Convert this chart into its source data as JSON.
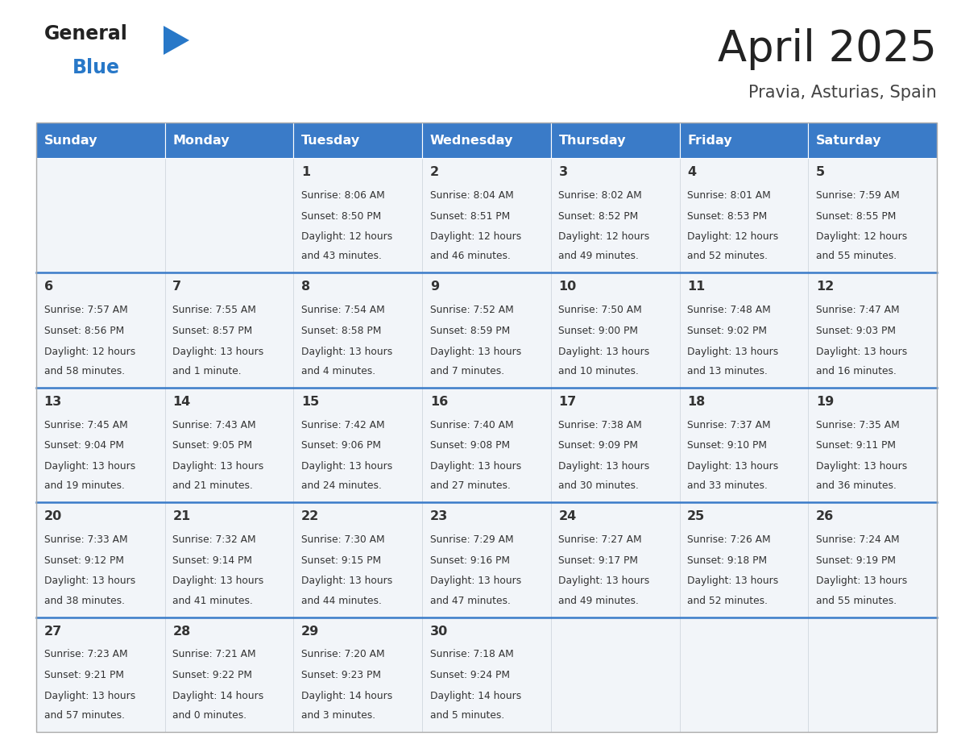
{
  "title": "April 2025",
  "subtitle": "Pravia, Asturias, Spain",
  "days_of_week": [
    "Sunday",
    "Monday",
    "Tuesday",
    "Wednesday",
    "Thursday",
    "Friday",
    "Saturday"
  ],
  "header_bg": "#3a7bc8",
  "header_text": "#ffffff",
  "cell_bg": "#f2f5f9",
  "separator_color": "#3a7bc8",
  "title_color": "#222222",
  "subtitle_color": "#444444",
  "text_color": "#333333",
  "logo_general_color": "#222222",
  "logo_blue_color": "#2878c8",
  "logo_triangle_color": "#2878c8",
  "calendar_data": [
    [
      {
        "day": "",
        "sunrise": "",
        "sunset": "",
        "daylight": ""
      },
      {
        "day": "",
        "sunrise": "",
        "sunset": "",
        "daylight": ""
      },
      {
        "day": "1",
        "sunrise": "Sunrise: 8:06 AM",
        "sunset": "Sunset: 8:50 PM",
        "daylight": "Daylight: 12 hours\nand 43 minutes."
      },
      {
        "day": "2",
        "sunrise": "Sunrise: 8:04 AM",
        "sunset": "Sunset: 8:51 PM",
        "daylight": "Daylight: 12 hours\nand 46 minutes."
      },
      {
        "day": "3",
        "sunrise": "Sunrise: 8:02 AM",
        "sunset": "Sunset: 8:52 PM",
        "daylight": "Daylight: 12 hours\nand 49 minutes."
      },
      {
        "day": "4",
        "sunrise": "Sunrise: 8:01 AM",
        "sunset": "Sunset: 8:53 PM",
        "daylight": "Daylight: 12 hours\nand 52 minutes."
      },
      {
        "day": "5",
        "sunrise": "Sunrise: 7:59 AM",
        "sunset": "Sunset: 8:55 PM",
        "daylight": "Daylight: 12 hours\nand 55 minutes."
      }
    ],
    [
      {
        "day": "6",
        "sunrise": "Sunrise: 7:57 AM",
        "sunset": "Sunset: 8:56 PM",
        "daylight": "Daylight: 12 hours\nand 58 minutes."
      },
      {
        "day": "7",
        "sunrise": "Sunrise: 7:55 AM",
        "sunset": "Sunset: 8:57 PM",
        "daylight": "Daylight: 13 hours\nand 1 minute."
      },
      {
        "day": "8",
        "sunrise": "Sunrise: 7:54 AM",
        "sunset": "Sunset: 8:58 PM",
        "daylight": "Daylight: 13 hours\nand 4 minutes."
      },
      {
        "day": "9",
        "sunrise": "Sunrise: 7:52 AM",
        "sunset": "Sunset: 8:59 PM",
        "daylight": "Daylight: 13 hours\nand 7 minutes."
      },
      {
        "day": "10",
        "sunrise": "Sunrise: 7:50 AM",
        "sunset": "Sunset: 9:00 PM",
        "daylight": "Daylight: 13 hours\nand 10 minutes."
      },
      {
        "day": "11",
        "sunrise": "Sunrise: 7:48 AM",
        "sunset": "Sunset: 9:02 PM",
        "daylight": "Daylight: 13 hours\nand 13 minutes."
      },
      {
        "day": "12",
        "sunrise": "Sunrise: 7:47 AM",
        "sunset": "Sunset: 9:03 PM",
        "daylight": "Daylight: 13 hours\nand 16 minutes."
      }
    ],
    [
      {
        "day": "13",
        "sunrise": "Sunrise: 7:45 AM",
        "sunset": "Sunset: 9:04 PM",
        "daylight": "Daylight: 13 hours\nand 19 minutes."
      },
      {
        "day": "14",
        "sunrise": "Sunrise: 7:43 AM",
        "sunset": "Sunset: 9:05 PM",
        "daylight": "Daylight: 13 hours\nand 21 minutes."
      },
      {
        "day": "15",
        "sunrise": "Sunrise: 7:42 AM",
        "sunset": "Sunset: 9:06 PM",
        "daylight": "Daylight: 13 hours\nand 24 minutes."
      },
      {
        "day": "16",
        "sunrise": "Sunrise: 7:40 AM",
        "sunset": "Sunset: 9:08 PM",
        "daylight": "Daylight: 13 hours\nand 27 minutes."
      },
      {
        "day": "17",
        "sunrise": "Sunrise: 7:38 AM",
        "sunset": "Sunset: 9:09 PM",
        "daylight": "Daylight: 13 hours\nand 30 minutes."
      },
      {
        "day": "18",
        "sunrise": "Sunrise: 7:37 AM",
        "sunset": "Sunset: 9:10 PM",
        "daylight": "Daylight: 13 hours\nand 33 minutes."
      },
      {
        "day": "19",
        "sunrise": "Sunrise: 7:35 AM",
        "sunset": "Sunset: 9:11 PM",
        "daylight": "Daylight: 13 hours\nand 36 minutes."
      }
    ],
    [
      {
        "day": "20",
        "sunrise": "Sunrise: 7:33 AM",
        "sunset": "Sunset: 9:12 PM",
        "daylight": "Daylight: 13 hours\nand 38 minutes."
      },
      {
        "day": "21",
        "sunrise": "Sunrise: 7:32 AM",
        "sunset": "Sunset: 9:14 PM",
        "daylight": "Daylight: 13 hours\nand 41 minutes."
      },
      {
        "day": "22",
        "sunrise": "Sunrise: 7:30 AM",
        "sunset": "Sunset: 9:15 PM",
        "daylight": "Daylight: 13 hours\nand 44 minutes."
      },
      {
        "day": "23",
        "sunrise": "Sunrise: 7:29 AM",
        "sunset": "Sunset: 9:16 PM",
        "daylight": "Daylight: 13 hours\nand 47 minutes."
      },
      {
        "day": "24",
        "sunrise": "Sunrise: 7:27 AM",
        "sunset": "Sunset: 9:17 PM",
        "daylight": "Daylight: 13 hours\nand 49 minutes."
      },
      {
        "day": "25",
        "sunrise": "Sunrise: 7:26 AM",
        "sunset": "Sunset: 9:18 PM",
        "daylight": "Daylight: 13 hours\nand 52 minutes."
      },
      {
        "day": "26",
        "sunrise": "Sunrise: 7:24 AM",
        "sunset": "Sunset: 9:19 PM",
        "daylight": "Daylight: 13 hours\nand 55 minutes."
      }
    ],
    [
      {
        "day": "27",
        "sunrise": "Sunrise: 7:23 AM",
        "sunset": "Sunset: 9:21 PM",
        "daylight": "Daylight: 13 hours\nand 57 minutes."
      },
      {
        "day": "28",
        "sunrise": "Sunrise: 7:21 AM",
        "sunset": "Sunset: 9:22 PM",
        "daylight": "Daylight: 14 hours\nand 0 minutes."
      },
      {
        "day": "29",
        "sunrise": "Sunrise: 7:20 AM",
        "sunset": "Sunset: 9:23 PM",
        "daylight": "Daylight: 14 hours\nand 3 minutes."
      },
      {
        "day": "30",
        "sunrise": "Sunrise: 7:18 AM",
        "sunset": "Sunset: 9:24 PM",
        "daylight": "Daylight: 14 hours\nand 5 minutes."
      },
      {
        "day": "",
        "sunrise": "",
        "sunset": "",
        "daylight": ""
      },
      {
        "day": "",
        "sunrise": "",
        "sunset": "",
        "daylight": ""
      },
      {
        "day": "",
        "sunrise": "",
        "sunset": "",
        "daylight": ""
      }
    ]
  ]
}
